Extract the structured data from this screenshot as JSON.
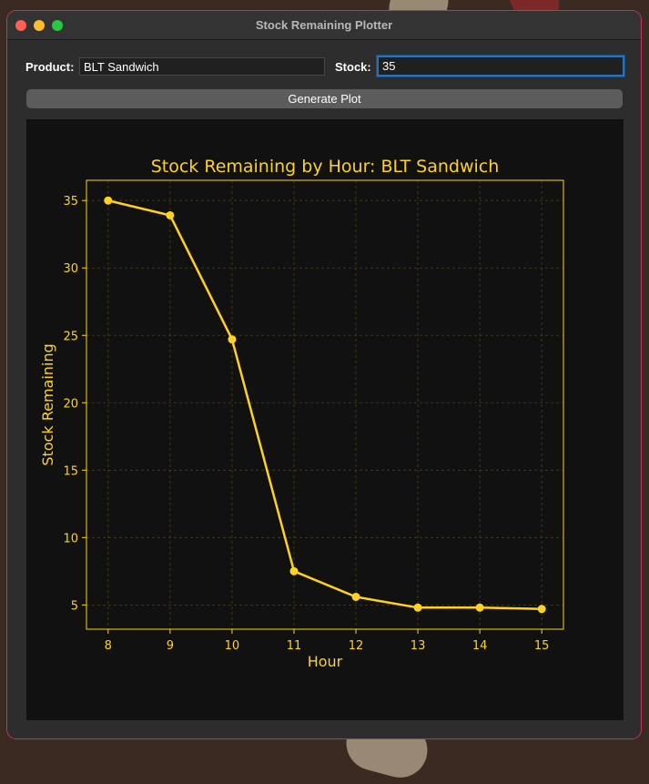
{
  "window": {
    "title": "Stock Remaining Plotter"
  },
  "form": {
    "product_label": "Product:",
    "product_value": "BLT Sandwich",
    "stock_label": "Stock:",
    "stock_value": "35",
    "generate_label": "Generate Plot"
  },
  "colors": {
    "accent": "#ffd21f",
    "plot_bg": "#111111",
    "window_bg": "#2d2d2d"
  },
  "chart_data": {
    "type": "line",
    "title": "Stock Remaining by Hour: BLT Sandwich",
    "xlabel": "Hour",
    "ylabel": "Stock Remaining",
    "x": [
      8,
      9,
      10,
      11,
      12,
      13,
      14,
      15
    ],
    "series": [
      {
        "values": [
          35,
          33.9,
          24.7,
          7.5,
          5.6,
          4.8,
          4.8,
          4.7
        ]
      }
    ],
    "xticks": [
      8,
      9,
      10,
      11,
      12,
      13,
      14,
      15
    ],
    "yticks": [
      5,
      10,
      15,
      20,
      25,
      30,
      35
    ],
    "xlim": [
      7.65,
      15.35
    ],
    "ylim": [
      3.2,
      36.5
    ],
    "grid": true,
    "legend": false
  }
}
